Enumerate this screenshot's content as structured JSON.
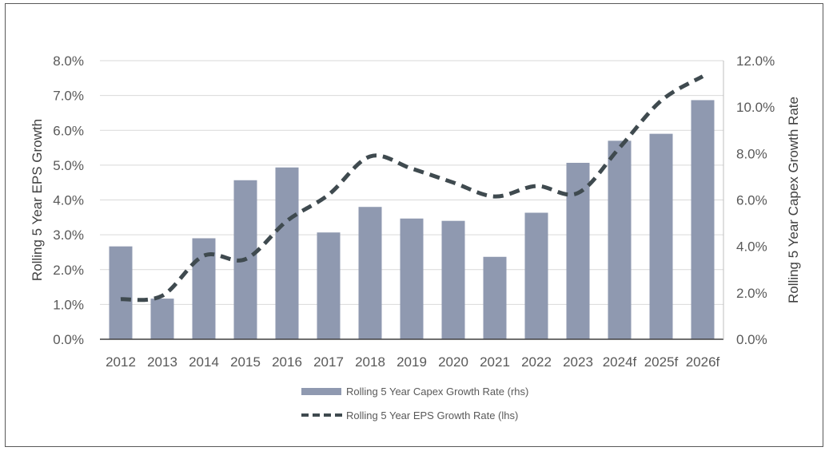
{
  "chart_data": {
    "type": "bar+line",
    "categories": [
      "2012",
      "2013",
      "2014",
      "2015",
      "2016",
      "2017",
      "2018",
      "2019",
      "2020",
      "2021",
      "2022",
      "2023",
      "2024f",
      "2025f",
      "2026f"
    ],
    "series": [
      {
        "name": "Rolling 5 Year Capex Growth Rate (rhs)",
        "type": "bar",
        "axis": "right",
        "color": "#8f99b0",
        "values": [
          4.0,
          1.75,
          4.35,
          6.85,
          7.4,
          4.6,
          5.7,
          5.2,
          5.1,
          3.55,
          5.45,
          7.6,
          8.55,
          8.85,
          10.3
        ]
      },
      {
        "name": "Rolling 5 Year EPS Growth Rate (lhs)",
        "type": "line",
        "axis": "left",
        "color": "#3f4a4f",
        "dashed": true,
        "values": [
          1.15,
          1.25,
          2.4,
          2.3,
          3.4,
          4.15,
          5.25,
          4.9,
          4.5,
          4.1,
          4.4,
          4.2,
          5.5,
          6.85,
          7.55
        ]
      }
    ],
    "y_left": {
      "label": "Rolling 5 Year EPS Growth",
      "min": 0,
      "max": 8,
      "step": 1,
      "ticks": [
        "0.0%",
        "1.0%",
        "2.0%",
        "3.0%",
        "4.0%",
        "5.0%",
        "6.0%",
        "7.0%",
        "8.0%"
      ]
    },
    "y_right": {
      "label": "Rolling 5 Year Capex Growth Rate",
      "min": 0,
      "max": 12,
      "step": 2,
      "ticks": [
        "0.0%",
        "2.0%",
        "4.0%",
        "6.0%",
        "8.0%",
        "10.0%",
        "12.0%"
      ]
    },
    "grid": true,
    "legend_position": "bottom"
  }
}
